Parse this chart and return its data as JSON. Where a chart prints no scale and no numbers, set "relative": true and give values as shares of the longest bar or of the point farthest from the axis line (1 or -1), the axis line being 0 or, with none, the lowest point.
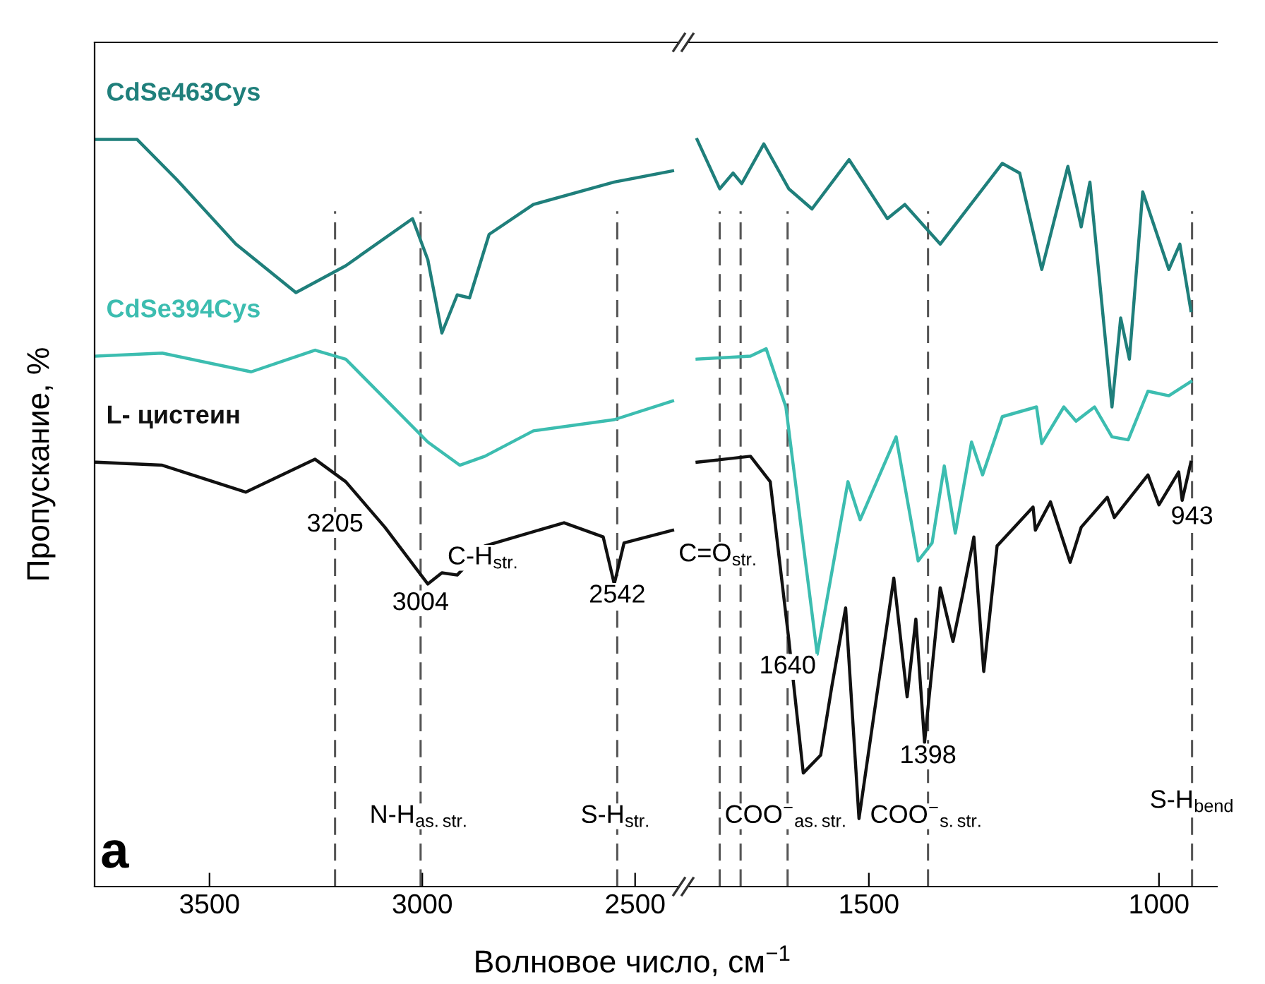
{
  "chart_data": [
    {
      "type": "line",
      "relative": true,
      "ylabel": "Пропускание, %",
      "xlabel": "Волновое число, см$^{−1}$",
      "xlim": [
        3770,
        2400
      ],
      "xticks": [
        3500,
        3000,
        2500
      ],
      "grid": false,
      "legend": false,
      "line_style": "solid",
      "marker": "none",
      "series": [
        {
          "name": "CdSe463Cys",
          "color": "#1f7f7b",
          "x": [
            3765,
            3670,
            3578,
            3438,
            3297,
            3180,
            3023,
            2987,
            2954,
            2918,
            2889,
            2843,
            2739,
            2549,
            2412
          ],
          "values": [
            1.0,
            1.0,
            0.947,
            0.86,
            0.795,
            0.831,
            0.894,
            0.839,
            0.741,
            0.792,
            0.788,
            0.873,
            0.913,
            0.943,
            0.958
          ]
        },
        {
          "name": "CdSe394Cys",
          "color": "#3cbdb0",
          "x": [
            3765,
            3611,
            3402,
            3252,
            3180,
            2987,
            2912,
            2853,
            2739,
            2549,
            2412
          ],
          "values": [
            0.71,
            0.714,
            0.689,
            0.718,
            0.706,
            0.595,
            0.564,
            0.576,
            0.61,
            0.625,
            0.65
          ]
        },
        {
          "name": "L- цистеин",
          "color": "#111111",
          "x": [
            3765,
            3611,
            3415,
            3252,
            3180,
            3088,
            2987,
            2954,
            2918,
            2853,
            2667,
            2575,
            2549,
            2526,
            2412
          ],
          "values": [
            0.568,
            0.564,
            0.528,
            0.572,
            0.542,
            0.481,
            0.405,
            0.42,
            0.417,
            0.456,
            0.487,
            0.468,
            0.405,
            0.46,
            0.477
          ]
        }
      ],
      "ref_lines": [
        {
          "axis": "x",
          "value": 3205,
          "label": null,
          "color": "#555555",
          "line_style": "dashed"
        },
        {
          "axis": "x",
          "value": 3004,
          "label": null,
          "color": "#555555",
          "line_style": "dashed"
        },
        {
          "axis": "x",
          "value": 2542,
          "label": null,
          "color": "#555555",
          "line_style": "dashed"
        }
      ],
      "annotations": [
        "a",
        {
          "text": "3205",
          "x": 3205,
          "y": 0.5
        },
        {
          "text": "3004",
          "x": 3004,
          "y": 0.395
        },
        {
          "text": "C-H$_{str.}$",
          "x": 2853,
          "y": 0.456
        },
        {
          "text": "2542",
          "x": 2542,
          "y": 0.405
        },
        {
          "text": "N-H$_{as.str.}$",
          "x": 3004,
          "y": 0.11
        },
        {
          "text": "S-H$_{str.}$",
          "x": 2542,
          "y": 0.11
        }
      ]
    },
    {
      "type": "line",
      "relative": true,
      "xlim": [
        1810,
        900
      ],
      "xticks": [
        1500,
        1000
      ],
      "grid": false,
      "legend": false,
      "line_style": "solid",
      "marker": "none",
      "series": [
        {
          "color": "#1f7f7b",
          "x": [
            1796,
            1757,
            1734,
            1719,
            1681,
            1638,
            1598,
            1534,
            1468,
            1438,
            1377,
            1270,
            1240,
            1202,
            1157,
            1134,
            1119,
            1081,
            1066,
            1051,
            1028,
            983,
            964,
            945
          ],
          "values": [
            1.0,
            0.934,
            0.955,
            0.941,
            0.994,
            0.934,
            0.907,
            0.973,
            0.894,
            0.913,
            0.86,
            0.968,
            0.955,
            0.826,
            0.964,
            0.883,
            0.943,
            0.642,
            0.761,
            0.706,
            0.93,
            0.826,
            0.86,
            0.771
          ]
        },
        {
          "color": "#3cbdb0",
          "x": [
            1796,
            1704,
            1677,
            1643,
            1589,
            1536,
            1515,
            1453,
            1415,
            1391,
            1370,
            1351,
            1323,
            1304,
            1270,
            1211,
            1202,
            1164,
            1143,
            1111,
            1081,
            1053,
            1019,
            983,
            945
          ],
          "values": [
            0.706,
            0.71,
            0.72,
            0.642,
            0.311,
            0.542,
            0.491,
            0.602,
            0.436,
            0.46,
            0.563,
            0.473,
            0.595,
            0.551,
            0.629,
            0.642,
            0.593,
            0.642,
            0.623,
            0.642,
            0.602,
            0.598,
            0.663,
            0.657,
            0.676
          ]
        },
        {
          "color": "#111111",
          "x": [
            1796,
            1704,
            1670,
            1638,
            1613,
            1583,
            1564,
            1540,
            1517,
            1491,
            1457,
            1434,
            1419,
            1404,
            1377,
            1355,
            1338,
            1319,
            1302,
            1279,
            1217,
            1213,
            1187,
            1153,
            1134,
            1089,
            1077,
            1019,
            1000,
            966,
            960,
            945
          ],
          "values": [
            0.568,
            0.576,
            0.542,
            0.331,
            0.152,
            0.176,
            0.267,
            0.373,
            0.091,
            0.231,
            0.413,
            0.254,
            0.358,
            0.193,
            0.4,
            0.328,
            0.392,
            0.468,
            0.288,
            0.456,
            0.508,
            0.477,
            0.515,
            0.434,
            0.481,
            0.521,
            0.494,
            0.551,
            0.511,
            0.555,
            0.517,
            0.568
          ]
        }
      ],
      "ref_lines": [
        {
          "axis": "x",
          "value": 1757,
          "label": null,
          "color": "#555555",
          "line_style": "dashed"
        },
        {
          "axis": "x",
          "value": 1721,
          "label": null,
          "color": "#555555",
          "line_style": "dashed"
        },
        {
          "axis": "x",
          "value": 1640,
          "label": null,
          "color": "#555555",
          "line_style": "dashed"
        },
        {
          "axis": "x",
          "value": 1398,
          "label": null,
          "color": "#555555",
          "line_style": "dashed"
        },
        {
          "axis": "x",
          "value": 943,
          "label": null,
          "color": "#555555",
          "line_style": "dashed"
        }
      ],
      "annotations": [
        {
          "text": "C=O$_{str.}$",
          "x": 1757,
          "y": 0.46
        },
        {
          "text": "1640",
          "x": 1640,
          "y": 0.31
        },
        {
          "text": "1398",
          "x": 1398,
          "y": 0.19
        },
        {
          "text": "COO$^{−}$$_{as.str.}$",
          "x": 1640,
          "y": 0.11
        },
        {
          "text": "COO$^{−}$$_{s.str.}$",
          "x": 1398,
          "y": 0.11
        },
        {
          "text": "S-H$_{bend}$",
          "x": 943,
          "y": 0.13
        },
        {
          "text": "943",
          "x": 943,
          "y": 0.51
        }
      ]
    }
  ]
}
